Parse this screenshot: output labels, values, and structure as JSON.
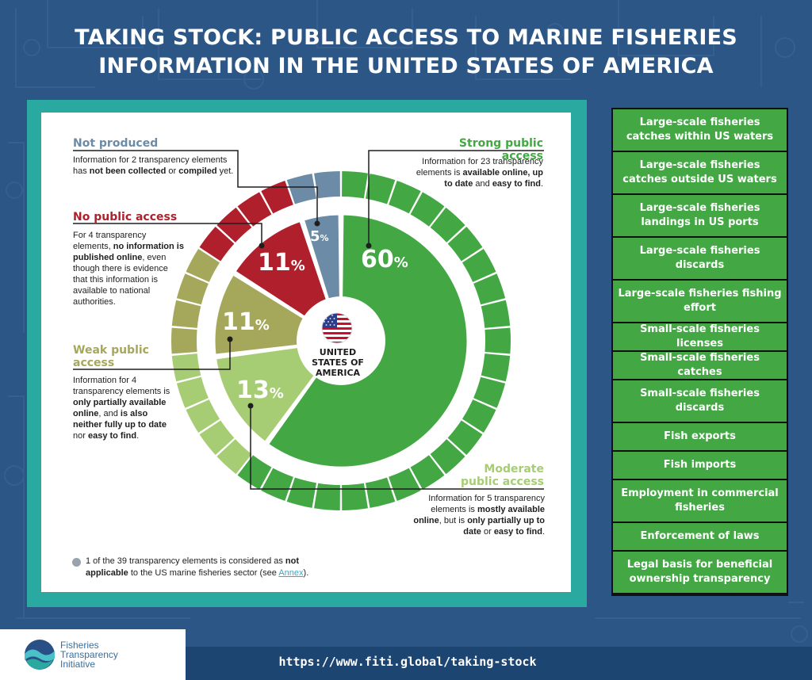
{
  "title": [
    "TAKING STOCK: PUBLIC ACCESS TO MARINE FISHERIES",
    "INFORMATION IN THE UNITED STATES OF AMERICA"
  ],
  "colors": {
    "strong": "#43a844",
    "moderate": "#a6cd74",
    "weak": "#a5a85b",
    "none": "#b01f2c",
    "not_produced": "#6b8ba6",
    "frame": "#2aa9a1",
    "background": "#2c5686"
  },
  "chart_data": {
    "type": "pie",
    "center_label": [
      "UNITED",
      "STATES OF",
      "AMERICA"
    ],
    "total_elements": 39,
    "slices": [
      {
        "key": "strong",
        "label": "Strong public access",
        "value": 60,
        "count": 23,
        "pct_text": "60"
      },
      {
        "key": "moderate",
        "label": "Moderate public access",
        "value": 13,
        "count": 5,
        "pct_text": "13"
      },
      {
        "key": "weak",
        "label": "Weak public access",
        "value": 11,
        "count": 4,
        "pct_text": "11"
      },
      {
        "key": "none",
        "label": "No public access",
        "value": 11,
        "count": 4,
        "pct_text": "11"
      },
      {
        "key": "not_produced",
        "label": "Not produced",
        "value": 5,
        "count": 2,
        "pct_text": "5"
      }
    ]
  },
  "labels": {
    "not_produced": {
      "title": "Not produced",
      "desc": "Information for 2 transparency elements has <b>not been collected</b> or <b>compiled</b> yet."
    },
    "none": {
      "title": "No public access",
      "desc": "For 4 transparency elements, <b>no information is published online</b>, even though there is evidence that this information is available to national authorities."
    },
    "weak": {
      "title": "Weak public access",
      "desc": "Information for 4 transparency elements is <b>only partially available online</b>, and <b>is also neither fully up to date</b> nor <b>easy to find</b>."
    },
    "strong": {
      "title": "Strong public access",
      "desc": "Information for 23 transparency elements is <b>available online, up to date</b> and <b>easy to find</b>."
    },
    "moderate": {
      "title": "Moderate public access",
      "desc": "Information for 5 transparency elements is <b>mostly available online</b>, but is <b>only partially up to date</b> or <b>easy to find</b>."
    }
  },
  "pct_symbol": "%",
  "footnote": {
    "pre": "1 of the 39 transparency elements is considered as ",
    "bold": "not applicable",
    "mid": " to the US marine fisheries sector (see ",
    "link": "Annex",
    "post": ")."
  },
  "elements": [
    "Large-scale fisheries catches within US waters",
    "Large-scale fisheries catches outside US waters",
    "Large-scale fisheries landings in US ports",
    "Large-scale fisheries discards",
    "Large-scale fisheries fishing effort",
    "Small-scale fisheries licenses",
    "Small-scale fisheries catches",
    "Small-scale fisheries discards",
    "Fish exports",
    "Fish imports",
    "Employment in commercial fisheries",
    "Enforcement of laws",
    "Legal basis for beneficial ownership transparency"
  ],
  "logo": {
    "lines": [
      "Fisheries",
      "Transparency",
      "Initiative"
    ]
  },
  "url": "https://www.fiti.global/taking-stock"
}
